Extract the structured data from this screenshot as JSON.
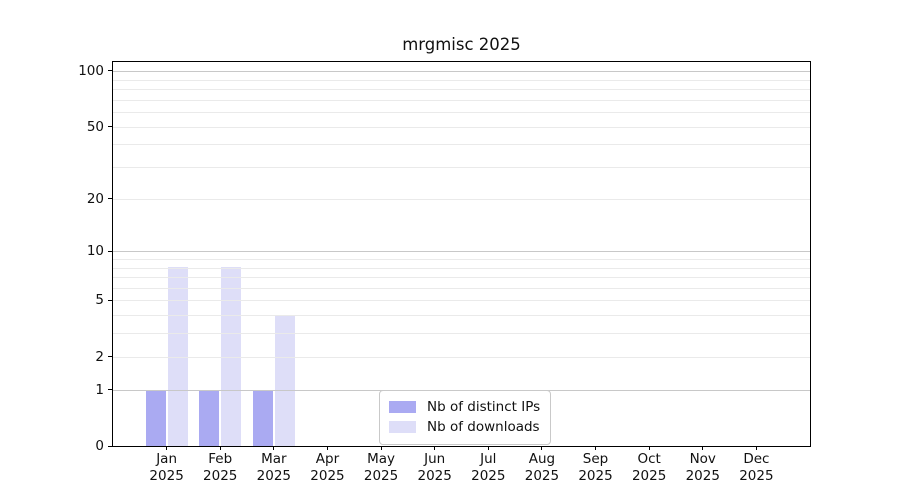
{
  "chart_data": {
    "type": "bar",
    "title": "mrgmisc 2025",
    "categories": [
      "Jan",
      "Feb",
      "Mar",
      "Apr",
      "May",
      "Jun",
      "Jul",
      "Aug",
      "Sep",
      "Oct",
      "Nov",
      "Dec"
    ],
    "category_year": "2025",
    "series": [
      {
        "name": "Nb of distinct IPs",
        "color": "#aaaaf2",
        "values": [
          1,
          1,
          1,
          0,
          0,
          0,
          0,
          0,
          0,
          0,
          0,
          0
        ]
      },
      {
        "name": "Nb of downloads",
        "color": "#dedef8",
        "values": [
          8,
          8,
          4,
          0,
          0,
          0,
          0,
          0,
          0,
          0,
          0,
          0
        ]
      }
    ],
    "y_scale": "log1p",
    "ylim": [
      0,
      111.8
    ],
    "xlabel": "",
    "ylabel": "",
    "y_ticks_labeled": [
      0,
      1,
      2,
      5,
      10,
      20,
      50,
      100
    ],
    "y_gridlines_major": [
      1,
      10,
      100
    ],
    "y_gridlines_minor": [
      2,
      3,
      4,
      5,
      6,
      7,
      8,
      9,
      20,
      30,
      40,
      50,
      60,
      70,
      80,
      90
    ],
    "grid": "on",
    "legend_position": "lower-center",
    "colors": {
      "grid_major": "#c8c8c8",
      "grid_minor": "#eaeaea",
      "axis": "#000000",
      "background": "#ffffff",
      "text": "#111111"
    }
  }
}
